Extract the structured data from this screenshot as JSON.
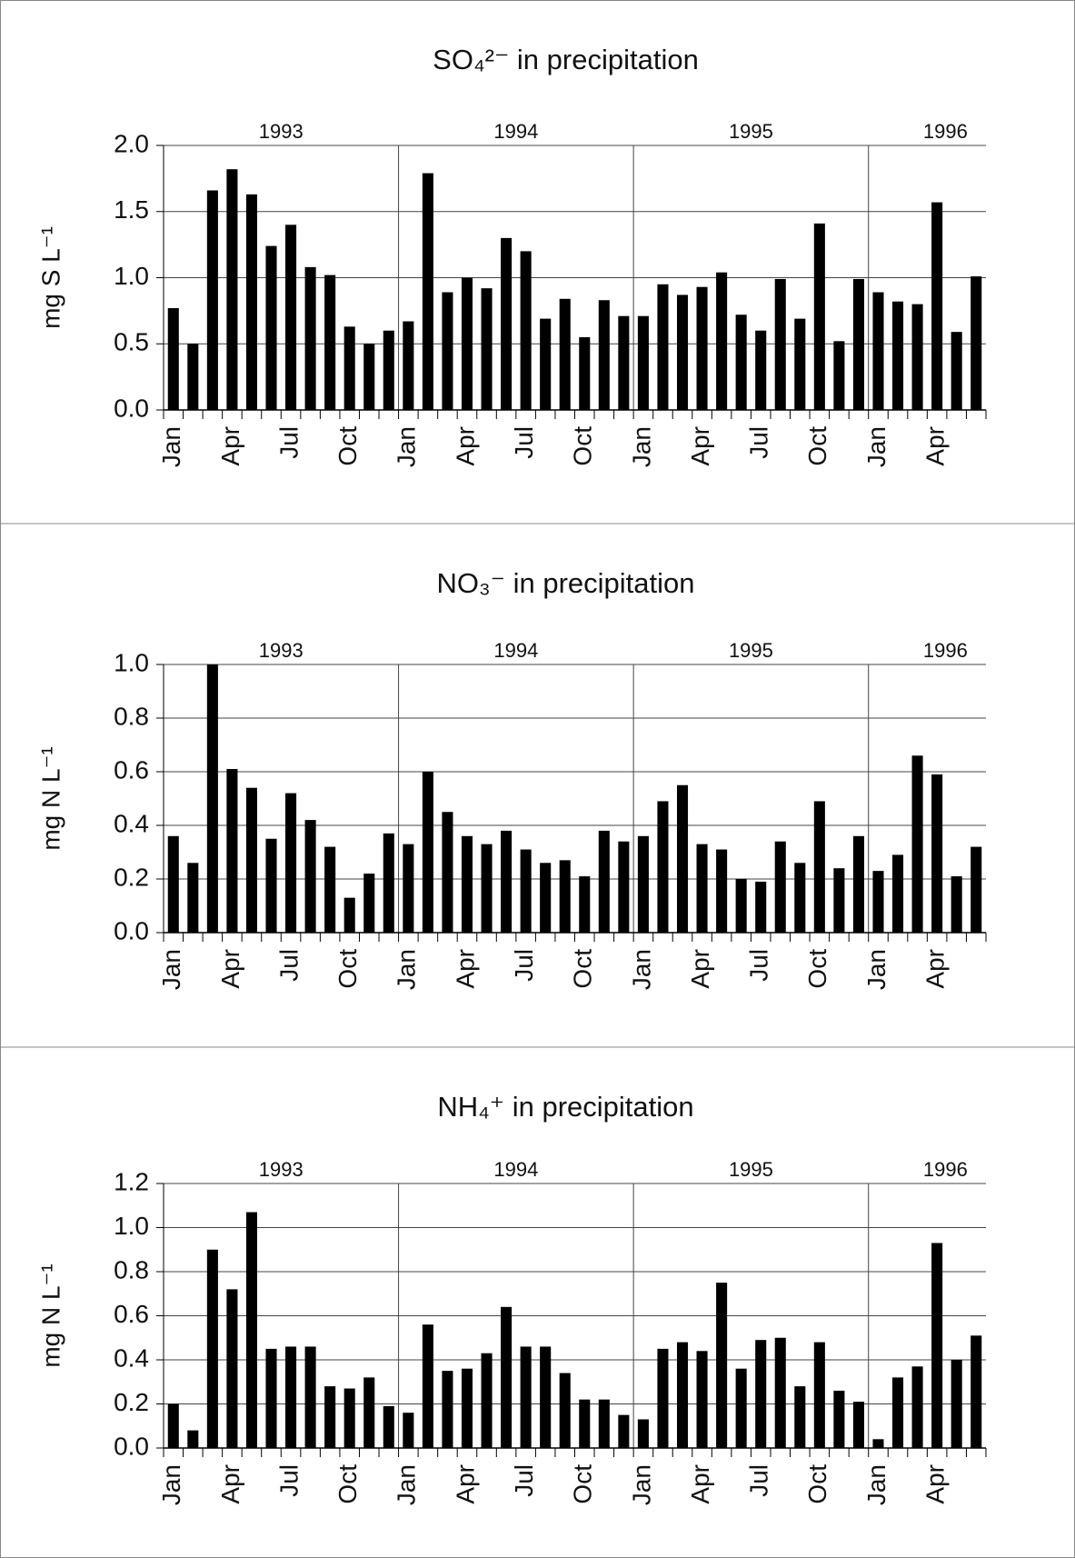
{
  "chart_data": [
    {
      "type": "bar",
      "title": "SO₄²⁻ in precipitation",
      "y_label": "mg S L⁻¹",
      "color": "#000000",
      "grid": true,
      "year_labels": [
        "1993",
        "1994",
        "1995",
        "1996"
      ],
      "categories": [
        "Jan",
        null,
        null,
        "Apr",
        null,
        null,
        "Jul",
        null,
        null,
        "Oct",
        null,
        null,
        "Jan",
        null,
        null,
        "Apr",
        null,
        null,
        "Jul",
        null,
        null,
        "Oct",
        null,
        null,
        "Jan",
        null,
        null,
        "Apr",
        null,
        null,
        "Jul",
        null,
        null,
        "Oct",
        null,
        null,
        "Jan",
        null,
        null,
        "Apr",
        null,
        null
      ],
      "values": [
        0.77,
        0.5,
        1.66,
        1.82,
        1.63,
        1.24,
        1.4,
        1.08,
        1.02,
        0.63,
        0.5,
        0.6,
        0.67,
        1.79,
        0.89,
        1.0,
        0.92,
        1.3,
        1.2,
        0.69,
        0.84,
        0.55,
        0.83,
        0.71,
        0.71,
        0.95,
        0.87,
        0.93,
        1.04,
        0.72,
        0.6,
        0.99,
        0.69,
        1.41,
        0.52,
        0.99,
        0.89,
        0.82,
        0.8,
        1.57,
        0.59,
        1.01
      ],
      "ylim": [
        0,
        2
      ],
      "yticks": [
        {
          "value": 0,
          "label": "0.0"
        },
        0.5,
        {
          "value": 1,
          "label": "1.0"
        },
        1.5,
        {
          "value": 2,
          "label": "2.0"
        }
      ]
    },
    {
      "type": "bar",
      "title": "NO₃⁻ in precipitation",
      "y_label": "mg N L⁻¹",
      "color": "#000000",
      "grid": true,
      "year_labels": [
        "1993",
        "1994",
        "1995",
        "1996"
      ],
      "categories": [
        "Jan",
        null,
        null,
        "Apr",
        null,
        null,
        "Jul",
        null,
        null,
        "Oct",
        null,
        null,
        "Jan",
        null,
        null,
        "Apr",
        null,
        null,
        "Jul",
        null,
        null,
        "Oct",
        null,
        null,
        "Jan",
        null,
        null,
        "Apr",
        null,
        null,
        "Jul",
        null,
        null,
        "Oct",
        null,
        null,
        "Jan",
        null,
        null,
        "Apr",
        null,
        null
      ],
      "values": [
        0.36,
        0.26,
        1.0,
        0.61,
        0.54,
        0.35,
        0.52,
        0.42,
        0.32,
        0.13,
        0.22,
        0.37,
        0.33,
        0.6,
        0.45,
        0.36,
        0.33,
        0.38,
        0.31,
        0.26,
        0.27,
        0.21,
        0.38,
        0.34,
        0.36,
        0.49,
        0.55,
        0.33,
        0.31,
        0.2,
        0.19,
        0.34,
        0.26,
        0.49,
        0.24,
        0.36,
        0.23,
        0.29,
        0.66,
        0.59,
        0.21,
        0.32
      ],
      "ylim": [
        0,
        1
      ],
      "yticks": [
        {
          "value": 0,
          "label": "0.0"
        },
        0.2,
        0.4,
        0.6,
        0.8,
        {
          "value": 1,
          "label": "1.0"
        }
      ]
    },
    {
      "type": "bar",
      "title": "NH₄⁺ in precipitation",
      "y_label": "mg N L⁻¹",
      "color": "#000000",
      "grid": true,
      "year_labels": [
        "1993",
        "1994",
        "1995",
        "1996"
      ],
      "categories": [
        "Jan",
        null,
        null,
        "Apr",
        null,
        null,
        "Jul",
        null,
        null,
        "Oct",
        null,
        null,
        "Jan",
        null,
        null,
        "Apr",
        null,
        null,
        "Jul",
        null,
        null,
        "Oct",
        null,
        null,
        "Jan",
        null,
        null,
        "Apr",
        null,
        null,
        "Jul",
        null,
        null,
        "Oct",
        null,
        null,
        "Jan",
        null,
        null,
        "Apr",
        null,
        null
      ],
      "values": [
        0.2,
        0.08,
        0.9,
        0.72,
        1.07,
        0.45,
        0.46,
        0.46,
        0.28,
        0.27,
        0.32,
        0.19,
        0.16,
        0.56,
        0.35,
        0.36,
        0.43,
        0.64,
        0.46,
        0.46,
        0.34,
        0.22,
        0.22,
        0.15,
        0.13,
        0.45,
        0.48,
        0.44,
        0.75,
        0.36,
        0.49,
        0.5,
        0.28,
        0.48,
        0.26,
        0.21,
        0.04,
        0.32,
        0.37,
        0.93,
        0.4,
        0.51
      ],
      "ylim": [
        0,
        1.2
      ],
      "yticks": [
        {
          "value": 0,
          "label": "0.0"
        },
        0.2,
        0.4,
        0.6,
        0.8,
        {
          "value": 1,
          "label": "1.0"
        },
        1.2
      ]
    }
  ]
}
